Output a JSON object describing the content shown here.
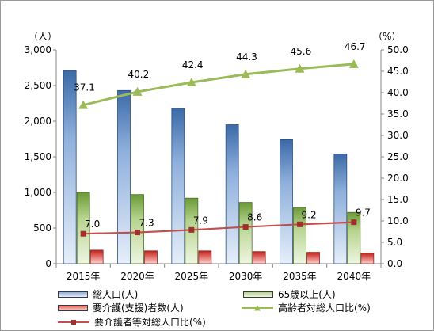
{
  "chart_data": {
    "type": "bar",
    "categories": [
      "2015年",
      "2020年",
      "2025年",
      "2030年",
      "2035年",
      "2040年"
    ],
    "y_left": {
      "unit_label": "（人）",
      "ylim": [
        0,
        3000
      ],
      "ticks": [
        0,
        500,
        1000,
        1500,
        2000,
        2500,
        3000
      ],
      "tick_labels": [
        "0",
        "500",
        "1,000",
        "1,500",
        "2,000",
        "2,500",
        "3,000"
      ]
    },
    "y_right": {
      "unit_label": "（%）",
      "ylim": [
        0,
        50
      ],
      "ticks": [
        0,
        5,
        10,
        15,
        20,
        25,
        30,
        35,
        40,
        45,
        50
      ],
      "tick_labels": [
        "0.0",
        "5.0",
        "10.0",
        "15.0",
        "20.0",
        "25.0",
        "30.0",
        "35.0",
        "40.0",
        "45.0",
        "50.0"
      ]
    },
    "series": [
      {
        "name": "総人口(人)",
        "kind": "bar",
        "axis": "left",
        "values": [
          2710,
          2430,
          2180,
          1950,
          1740,
          1540
        ],
        "color": "#4f81bd"
      },
      {
        "name": "65歳以上(人)",
        "kind": "bar",
        "axis": "left",
        "values": [
          1000,
          970,
          920,
          860,
          790,
          720
        ],
        "color": "#9bbb59"
      },
      {
        "name": "要介護(支援)者数(人)",
        "kind": "bar",
        "axis": "left",
        "values": [
          190,
          180,
          180,
          170,
          160,
          150
        ],
        "color": "#c0504d"
      },
      {
        "name": "高齢者対総人口比(%)",
        "kind": "line",
        "axis": "right",
        "values": [
          37.1,
          40.2,
          42.4,
          44.3,
          45.6,
          46.7
        ],
        "labels": [
          "37.1",
          "40.2",
          "42.4",
          "44.3",
          "45.6",
          "46.7"
        ],
        "color": "#9bbb59",
        "marker": "triangle"
      },
      {
        "name": "要介護者等対総人口比(%)",
        "kind": "line",
        "axis": "right",
        "values": [
          7.0,
          7.3,
          7.9,
          8.6,
          9.2,
          9.7
        ],
        "labels": [
          "7.0",
          "7.3",
          "7.9",
          "8.6",
          "9.2",
          "9.7"
        ],
        "color": "#c0504d",
        "marker": "square"
      }
    ],
    "grid": false,
    "legend_position": "bottom"
  },
  "legend": {
    "total_population": "総人口(人)",
    "aged_65_plus": "65歳以上(人)",
    "care_required": "要介護(支援)者数(人)",
    "elderly_ratio": "高齢者対総人口比(%)",
    "care_ratio": "要介護者等対総人口比(%)"
  }
}
